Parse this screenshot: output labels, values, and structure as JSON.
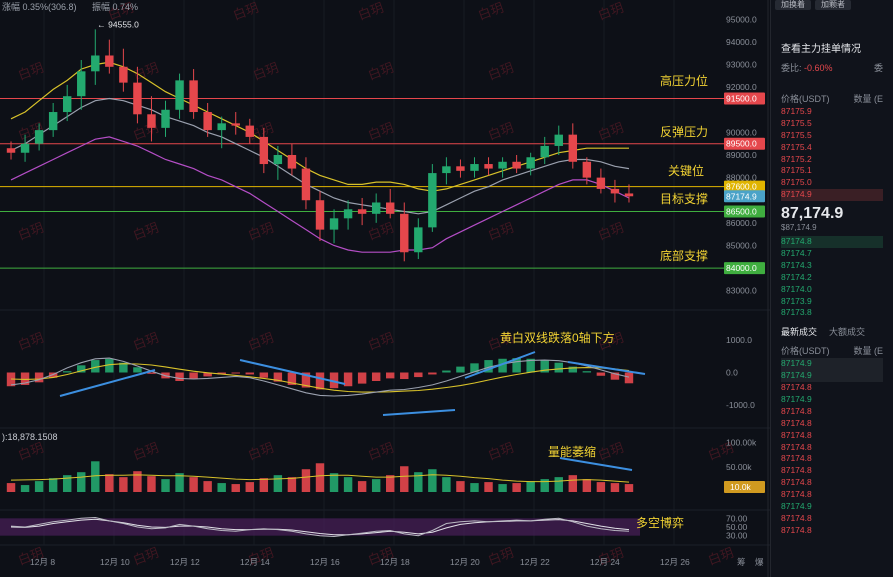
{
  "header": {
    "change_text": "涨幅 0.35%(306.8)",
    "amplitude_text": "振幅 0.74%",
    "high_marker": "94555.0",
    "volume_label": "):18,878.1508"
  },
  "watermark": "白玥",
  "annotations": {
    "high_pressure": "高压力位",
    "rebound_pressure": "反弹压力",
    "key_level": "关键位",
    "target_support": "目标支撑",
    "bottom_support": "底部支撑",
    "macd_note": "黄白双线跌落0轴下方",
    "volume_note": "量能萎缩",
    "rsi_note": "多空博弈"
  },
  "colors": {
    "up": "#23a96f",
    "down": "#e5474c",
    "ma_yellow": "#d8c22a",
    "ma_white": "#9aa0ae",
    "ma_purple": "#b44ec6",
    "annot": "#f1d233",
    "arrow": "#3c8fe0"
  },
  "price_axis_labels": [
    "95000.0",
    "94000.0",
    "93000.0",
    "92000.0",
    "90000.0",
    "89000.0",
    "88000.0",
    "86000.0",
    "85000.0",
    "83000.0"
  ],
  "level_tags": [
    {
      "label": "91500.0",
      "price": 91500,
      "color": "#e5474c",
      "text_color": "#ffffff"
    },
    {
      "label": "89500.0",
      "price": 89500,
      "color": "#e5474c",
      "text_color": "#ffffff"
    },
    {
      "label": "87600.0",
      "price": 87600,
      "color": "#e0b400",
      "text_color": "#ffffff"
    },
    {
      "label": "87174.9",
      "price": 87174.9,
      "color": "#4aa3c8",
      "text_color": "#ffffff"
    },
    {
      "label": "86500.0",
      "price": 86500,
      "color": "#3fae3f",
      "text_color": "#ffffff"
    },
    {
      "label": "84000.0",
      "price": 84000,
      "color": "#3fae3f",
      "text_color": "#ffffff"
    }
  ],
  "macd_axis_labels": [
    "1000.0",
    "0.0",
    "-1000.0"
  ],
  "volume_axis_labels": [
    "100.00k",
    "50.00k",
    "10.0k"
  ],
  "rsi_axis_labels": [
    "70.00",
    "50.00",
    "30.00"
  ],
  "x_axis_labels": [
    "12月 8",
    "12月 10",
    "12月 12",
    "12月 14",
    "12月 16",
    "12月 18",
    "12月 20",
    "12月 22",
    "12月 24",
    "12月 26"
  ],
  "x_axis_extra": [
    "筹",
    "爆"
  ],
  "right_panel": {
    "buttons": [
      "加换着",
      "加颗者"
    ],
    "title": "查看主力挂单情况",
    "ratio_label": "委比:",
    "ratio_value": "-0.60%",
    "ratio_right": "委",
    "col_price": "价格(USDT)",
    "col_qty": "数量 (E",
    "asks": [
      "87175.9",
      "87175.5",
      "87175.5",
      "87175.4",
      "87175.2",
      "87175.1",
      "87175.0",
      "87174.9"
    ],
    "last_price": "87,174.9",
    "last_sub": "$87,174.9",
    "bids": [
      "87174.8",
      "87174.7",
      "87174.3",
      "87174.2",
      "87174.0",
      "87173.9",
      "87173.8"
    ],
    "tab_active": "最新成交",
    "tab_inactive": "大额成交",
    "col_price2": "价格(USDT)",
    "col_qty2": "数量 (E",
    "trades": [
      {
        "p": "87174.9",
        "side": "bid"
      },
      {
        "p": "87174.9",
        "side": "bid"
      },
      {
        "p": "87174.8",
        "side": "ask"
      },
      {
        "p": "87174.9",
        "side": "bid"
      },
      {
        "p": "87174.8",
        "side": "ask"
      },
      {
        "p": "87174.8",
        "side": "ask"
      },
      {
        "p": "87174.8",
        "side": "ask"
      },
      {
        "p": "87174.8",
        "side": "ask"
      },
      {
        "p": "87174.8",
        "side": "ask"
      },
      {
        "p": "87174.8",
        "side": "ask"
      },
      {
        "p": "87174.8",
        "side": "ask"
      },
      {
        "p": "87174.8",
        "side": "ask"
      },
      {
        "p": "87174.9",
        "side": "bid"
      },
      {
        "p": "87174.8",
        "side": "ask"
      },
      {
        "p": "87174.8",
        "side": "ask"
      }
    ]
  },
  "chart_data": {
    "type": "candlestick",
    "price_ylim": [
      82500,
      95500
    ],
    "horizontal_levels": [
      {
        "label": "高压力位",
        "price": 91500,
        "color": "#e5474c"
      },
      {
        "label": "反弹压力",
        "price": 89500,
        "color": "#e5474c"
      },
      {
        "label": "关键位",
        "price": 87600,
        "color": "#e0b400"
      },
      {
        "label": "目标支撑",
        "price": 86500,
        "color": "#3fae3f"
      },
      {
        "label": "底部支撑",
        "price": 84000,
        "color": "#3fae3f"
      }
    ],
    "candles": [
      [
        89300,
        89600,
        88800,
        89100
      ],
      [
        89100,
        89900,
        88700,
        89500
      ],
      [
        89500,
        90400,
        89200,
        90100
      ],
      [
        90100,
        91300,
        89800,
        90900
      ],
      [
        90900,
        92100,
        90500,
        91600
      ],
      [
        91600,
        93200,
        91000,
        92700
      ],
      [
        92700,
        94555,
        92100,
        93400
      ],
      [
        93400,
        94100,
        92600,
        92900
      ],
      [
        92900,
        93700,
        91800,
        92200
      ],
      [
        92200,
        92900,
        90400,
        90800
      ],
      [
        90800,
        91600,
        89600,
        90200
      ],
      [
        90200,
        91400,
        89800,
        91000
      ],
      [
        91000,
        92600,
        90600,
        92300
      ],
      [
        92300,
        92800,
        90600,
        90900
      ],
      [
        90900,
        91300,
        89800,
        90100
      ],
      [
        90100,
        90700,
        89300,
        90400
      ],
      [
        90400,
        90900,
        89900,
        90300
      ],
      [
        90300,
        90600,
        89500,
        89800
      ],
      [
        89800,
        90200,
        88200,
        88600
      ],
      [
        88600,
        89400,
        87900,
        89000
      ],
      [
        89000,
        89500,
        88100,
        88400
      ],
      [
        88400,
        88900,
        86600,
        87000
      ],
      [
        87000,
        87400,
        85200,
        85700
      ],
      [
        85700,
        86600,
        85100,
        86200
      ],
      [
        86200,
        87000,
        85700,
        86600
      ],
      [
        86600,
        87100,
        85900,
        86400
      ],
      [
        86400,
        87300,
        86000,
        86900
      ],
      [
        86900,
        87500,
        86200,
        86400
      ],
      [
        86400,
        86900,
        84300,
        84700
      ],
      [
        84700,
        86200,
        84400,
        85800
      ],
      [
        85800,
        88600,
        85600,
        88200
      ],
      [
        88200,
        88900,
        87700,
        88500
      ],
      [
        88500,
        88800,
        88000,
        88300
      ],
      [
        88300,
        88900,
        88000,
        88600
      ],
      [
        88600,
        88900,
        88100,
        88400
      ],
      [
        88400,
        88900,
        88000,
        88700
      ],
      [
        88700,
        89000,
        88200,
        88400
      ],
      [
        88400,
        89100,
        88100,
        88900
      ],
      [
        88900,
        89800,
        88600,
        89400
      ],
      [
        89400,
        90300,
        89000,
        89900
      ],
      [
        89900,
        90400,
        88400,
        88700
      ],
      [
        88700,
        88900,
        87700,
        88000
      ],
      [
        88000,
        88400,
        87300,
        87500
      ],
      [
        87500,
        87900,
        86900,
        87300
      ],
      [
        87300,
        87700,
        86900,
        87174.9
      ]
    ],
    "ma_yellow": [
      90600,
      90900,
      91400,
      91900,
      92300,
      92800,
      93000,
      93100,
      92900,
      92600,
      92200,
      91800,
      91500,
      91200,
      90900,
      90600,
      90300,
      90000,
      89600,
      89200,
      88800,
      88400,
      88100,
      87900,
      87700,
      87700,
      87800,
      87800,
      87700,
      87500,
      87400,
      87500,
      87700,
      87900,
      88100,
      88300,
      88500,
      88700,
      88900,
      89100,
      89200,
      89300,
      89300,
      89300,
      89300
    ],
    "ma_white": [
      89200,
      89500,
      89900,
      90300,
      90700,
      91100,
      91400,
      91500,
      91400,
      91200,
      91000,
      90700,
      90500,
      90300,
      90000,
      89800,
      89500,
      89200,
      88900,
      88500,
      88100,
      87700,
      87400,
      87100,
      86900,
      86800,
      86700,
      86600,
      86500,
      86400,
      86500,
      86800,
      87100,
      87400,
      87600,
      87900,
      88100,
      88300,
      88500,
      88700,
      88800,
      88800,
      88700,
      88500,
      88400
    ],
    "ma_purple": [
      87900,
      88200,
      88500,
      88800,
      89100,
      89400,
      89700,
      89800,
      89600,
      89400,
      89100,
      88800,
      88600,
      88400,
      88100,
      87900,
      87600,
      87300,
      86900,
      86500,
      86100,
      85700,
      85300,
      85000,
      84800,
      84700,
      84700,
      84700,
      84800,
      84800,
      84900,
      85300,
      85600,
      85900,
      86200,
      86500,
      86800,
      87100,
      87400,
      87700,
      87900,
      87900,
      87700,
      87400,
      87100
    ],
    "macd_hist": [
      -420,
      -380,
      -300,
      -160,
      40,
      220,
      380,
      420,
      300,
      160,
      -40,
      -180,
      -260,
      -200,
      -120,
      -60,
      -20,
      -60,
      -160,
      -280,
      -380,
      -460,
      -520,
      -480,
      -420,
      -340,
      -260,
      -180,
      -200,
      -140,
      -60,
      60,
      180,
      280,
      380,
      420,
      440,
      420,
      380,
      300,
      180,
      40,
      -100,
      -220,
      -330
    ],
    "macd_dif": [
      -380,
      -320,
      -220,
      -60,
      140,
      300,
      420,
      440,
      340,
      200,
      40,
      -100,
      -180,
      -200,
      -180,
      -150,
      -120,
      -160,
      -260,
      -380,
      -500,
      -620,
      -700,
      -720,
      -700,
      -660,
      -600,
      -540,
      -520,
      -460,
      -380,
      -260,
      -120,
      20,
      160,
      260,
      330,
      370,
      380,
      360,
      300,
      200,
      80,
      -40,
      -140
    ],
    "macd_dea": [
      -200,
      -210,
      -200,
      -150,
      -60,
      50,
      160,
      240,
      270,
      260,
      230,
      170,
      100,
      40,
      -10,
      -50,
      -90,
      -130,
      -180,
      -240,
      -320,
      -400,
      -480,
      -540,
      -580,
      -600,
      -600,
      -590,
      -570,
      -550,
      -510,
      -460,
      -400,
      -320,
      -230,
      -140,
      -60,
      10,
      70,
      110,
      140,
      150,
      140,
      110,
      60
    ],
    "volume": [
      18000,
      14000,
      22000,
      28000,
      34000,
      40000,
      62000,
      36000,
      30000,
      42000,
      32000,
      26000,
      38000,
      30000,
      22000,
      18000,
      16000,
      20000,
      28000,
      34000,
      30000,
      46000,
      58000,
      38000,
      30000,
      22000,
      26000,
      34000,
      52000,
      40000,
      46000,
      30000,
      22000,
      18000,
      20000,
      16000,
      18000,
      22000,
      26000,
      30000,
      34000,
      26000,
      20000,
      18000,
      16000
    ],
    "volume_ma": [
      24000,
      24500,
      25000,
      26000,
      28000,
      30000,
      33000,
      34000,
      34000,
      34500,
      34000,
      33000,
      33000,
      32000,
      30000,
      28000,
      26000,
      25000,
      25500,
      26500,
      27500,
      30000,
      33000,
      34000,
      34000,
      32000,
      30000,
      30000,
      32000,
      33000,
      35000,
      34000,
      32000,
      29000,
      27000,
      24000,
      22000,
      21000,
      21000,
      22000,
      24000,
      25000,
      24000,
      22000,
      20000
    ],
    "rsi_a": [
      52,
      50,
      56,
      62,
      66,
      70,
      72,
      64,
      58,
      50,
      46,
      48,
      56,
      52,
      46,
      42,
      40,
      44,
      46,
      44,
      40,
      34,
      30,
      28,
      32,
      36,
      40,
      42,
      34,
      30,
      42,
      58,
      62,
      64,
      62,
      64,
      66,
      64,
      68,
      70,
      62,
      52,
      46,
      42,
      40
    ],
    "rsi_b": [
      50,
      49,
      52,
      58,
      62,
      66,
      68,
      64,
      60,
      54,
      50,
      49,
      52,
      52,
      50,
      46,
      44,
      44,
      45,
      45,
      43,
      39,
      35,
      32,
      32,
      34,
      37,
      40,
      38,
      34,
      38,
      48,
      56,
      60,
      62,
      63,
      64,
      64,
      66,
      67,
      64,
      58,
      52,
      47,
      44
    ],
    "x_labels": [
      "12月 8",
      "12月 10",
      "12月 12",
      "12月 14",
      "12月 16",
      "12月 18",
      "12月 20",
      "12月 22",
      "12月 24",
      "12月 26"
    ]
  }
}
